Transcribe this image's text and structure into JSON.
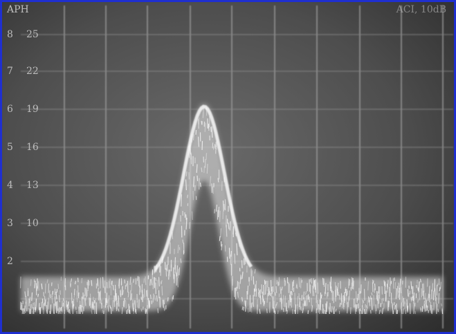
{
  "header": {
    "left": "APH",
    "right": "ACI, 10dB"
  },
  "scale": {
    "outer": [
      "8",
      "7",
      "6",
      "5",
      "4",
      "3",
      "2"
    ],
    "inner": [
      "25",
      "22",
      "19",
      "16",
      "13",
      "10"
    ]
  }
}
